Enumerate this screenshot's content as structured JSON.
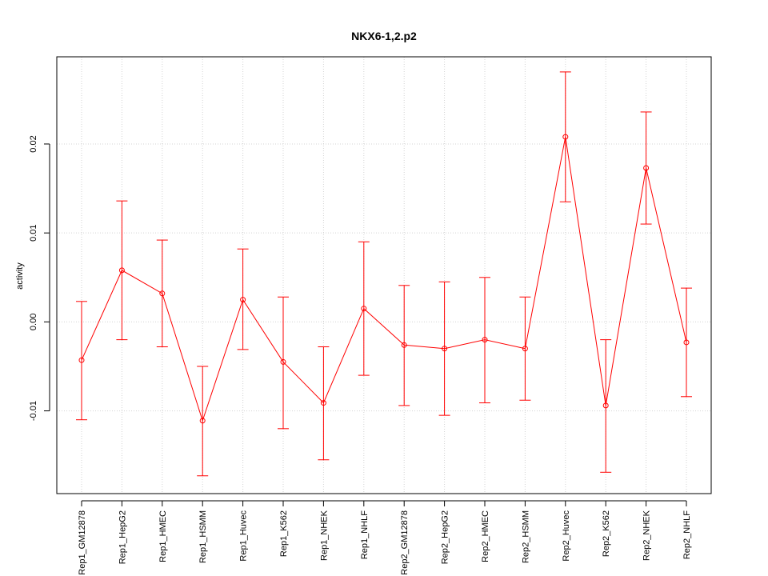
{
  "chart_data": {
    "type": "line",
    "title": "NKX6-1,2.p2",
    "xlabel": "",
    "ylabel": "activity",
    "ylim": [
      -0.0193,
      0.0298
    ],
    "yticks": [
      -0.01,
      0.0,
      0.01,
      0.02
    ],
    "ytick_labels": [
      "-0.01",
      "0.00",
      "0.01",
      "0.02"
    ],
    "grid": true,
    "series_color": "#ff0000",
    "categories": [
      "Rep1_GM12878",
      "Rep1_HepG2",
      "Rep1_HMEC",
      "Rep1_HSMM",
      "Rep1_Huvec",
      "Rep1_K562",
      "Rep1_NHEK",
      "Rep1_NHLF",
      "Rep2_GM12878",
      "Rep2_HepG2",
      "Rep2_HMEC",
      "Rep2_HSMM",
      "Rep2_Huvec",
      "Rep2_K562",
      "Rep2_NHEK",
      "Rep2_NHLF"
    ],
    "values": [
      -0.0043,
      0.0058,
      0.0032,
      -0.0111,
      0.0025,
      -0.0045,
      -0.0091,
      0.0015,
      -0.0026,
      -0.003,
      -0.002,
      -0.003,
      0.0208,
      -0.0094,
      0.0173,
      -0.0023
    ],
    "upper": [
      0.0023,
      0.0136,
      0.0092,
      -0.005,
      0.0082,
      0.0028,
      -0.0028,
      0.009,
      0.0041,
      0.0045,
      0.005,
      0.0028,
      0.0281,
      -0.002,
      0.0236,
      0.0038
    ],
    "lower": [
      -0.011,
      -0.002,
      -0.0028,
      -0.0173,
      -0.0031,
      -0.012,
      -0.0155,
      -0.006,
      -0.0094,
      -0.0105,
      -0.0091,
      -0.0088,
      0.0135,
      -0.0169,
      0.011,
      -0.0084
    ]
  }
}
